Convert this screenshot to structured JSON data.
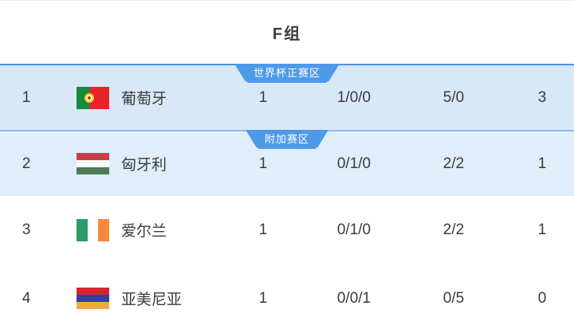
{
  "header": {
    "title": "F组"
  },
  "table": {
    "rows": [
      {
        "pos": "1",
        "team": "葡萄牙",
        "flag": "portugal",
        "zone_badge": "世界杯正赛区",
        "played": "1",
        "record": "1/0/0",
        "goals": "5/0",
        "points": "3"
      },
      {
        "pos": "2",
        "team": "匈牙利",
        "flag": "hungary",
        "zone_badge": "附加赛区",
        "played": "1",
        "record": "0/1/0",
        "goals": "2/2",
        "points": "1"
      },
      {
        "pos": "3",
        "team": "爱尔兰",
        "flag": "ireland",
        "played": "1",
        "record": "0/1/0",
        "goals": "2/2",
        "points": "1"
      },
      {
        "pos": "4",
        "team": "亚美尼亚",
        "flag": "armenia",
        "played": "1",
        "record": "0/0/1",
        "goals": "0/5",
        "points": "0"
      }
    ]
  },
  "colors": {
    "title_color": "#3c3c3c",
    "text_color": "#3b3b3b",
    "badge_blue": "#4e9ae9",
    "zone_line_primary": "#4a91e2",
    "zone_line_secondary": "#90bdf0",
    "row_qualified_bg": "#d9e8f7",
    "row_playoff_bg": "#e0eefb",
    "flag_portugal_green": "#148a3d",
    "flag_portugal_red": "#e8242b",
    "flag_emblem_yellow": "#f5d616",
    "flag_hungary_red": "#c83d49",
    "flag_hungary_white": "#f8f8f8",
    "flag_hungary_green": "#4e7c58",
    "flag_ireland_green": "#2b9c68",
    "flag_ireland_white": "#ffffff",
    "flag_ireland_orange": "#f6893d",
    "flag_armenia_red": "#d5262d",
    "flag_armenia_blue": "#333fa0",
    "flag_armenia_orange": "#efaa3f"
  }
}
